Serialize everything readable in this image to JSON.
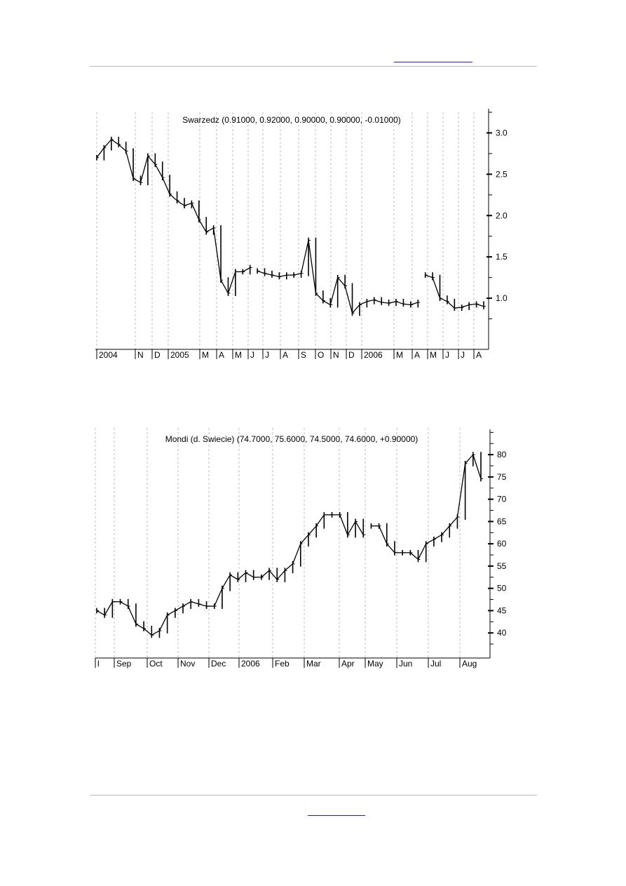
{
  "chart_data": [
    {
      "type": "ohlc",
      "title": "Swarzedz (0.91000, 0.92000, 0.90000, 0.90000, -0.01000)",
      "ylim": [
        0.5,
        3.25
      ],
      "y_ticks": [
        "1.0",
        "1.5",
        "2.0",
        "2.5",
        "3.0"
      ],
      "y_tick_values": [
        1.0,
        1.5,
        2.0,
        2.5,
        3.0
      ],
      "x_labels": [
        "2004",
        "N",
        "D",
        "2005",
        "M",
        "A",
        "M",
        "J",
        "J",
        "A",
        "S",
        "O",
        "N",
        "D",
        "2006",
        "M",
        "A",
        "M",
        "J",
        "J",
        "A"
      ],
      "grid": true,
      "series": [
        {
          "x": [
            0,
            1,
            2,
            3,
            4,
            5,
            6,
            7,
            8,
            9,
            10,
            11,
            12,
            13,
            14,
            15,
            16,
            17,
            18,
            19,
            20,
            21
          ],
          "values": [
            2.7,
            2.82,
            2.92,
            2.86,
            2.78,
            2.45,
            2.4,
            2.72,
            2.62,
            2.46,
            2.26,
            2.18,
            2.12,
            2.15,
            1.95,
            1.8,
            1.85,
            1.22,
            1.06,
            1.32,
            1.32,
            1.37
          ]
        },
        {
          "x": [
            22,
            23,
            24,
            25,
            26,
            27,
            28,
            29,
            30,
            31,
            32,
            33,
            34,
            35,
            36,
            37,
            38,
            39,
            40,
            41,
            42,
            43,
            44
          ],
          "values": [
            1.33,
            1.3,
            1.28,
            1.26,
            1.28,
            1.28,
            1.3,
            1.7,
            1.06,
            0.97,
            0.92,
            1.25,
            1.15,
            0.82,
            0.92,
            0.96,
            0.98,
            0.95,
            0.94,
            0.96,
            0.93,
            0.92,
            0.95
          ]
        },
        {
          "x": [
            45,
            46,
            47,
            48,
            49,
            50,
            51,
            52,
            53
          ],
          "values": [
            1.28,
            1.25,
            1.0,
            0.96,
            0.88,
            0.89,
            0.92,
            0.93,
            0.9
          ]
        }
      ]
    },
    {
      "type": "ohlc",
      "title": "Mondi (d. Swiecie) (74.7000, 75.6000, 74.5000, 74.6000, +0.90000)",
      "ylim": [
        35,
        86
      ],
      "y_ticks": [
        "40",
        "45",
        "50",
        "55",
        "60",
        "65",
        "70",
        "75",
        "80"
      ],
      "y_tick_values": [
        40,
        45,
        50,
        55,
        60,
        65,
        70,
        75,
        80
      ],
      "x_labels": [
        "l",
        "Sep",
        "Oct",
        "Nov",
        "Dec",
        "2006",
        "Feb",
        "Mar",
        "Apr",
        "May",
        "Jun",
        "Jul",
        "Aug"
      ],
      "grid": true,
      "series": [
        {
          "x": [
            0,
            1,
            2,
            3,
            4,
            5,
            6,
            7,
            8,
            9,
            10,
            11,
            12,
            13,
            14,
            15,
            16,
            17,
            18,
            19,
            20,
            21,
            22,
            23,
            24,
            25,
            26,
            27,
            28,
            29,
            30,
            31,
            32,
            33,
            34
          ],
          "values": [
            45.0,
            44.0,
            47.0,
            47.0,
            46.0,
            42.0,
            41.0,
            39.5,
            40.5,
            44.0,
            45.0,
            46.0,
            47.0,
            46.5,
            46.0,
            46.0,
            50.0,
            53.0,
            52.0,
            53.5,
            52.5,
            52.5,
            54.0,
            52.0,
            54.0,
            55.5,
            60.0,
            62.0,
            64.0,
            66.5,
            66.5,
            66.5,
            62.0,
            65.0,
            62.0
          ]
        },
        {
          "x": [
            35,
            36,
            37,
            38,
            39,
            40,
            41,
            42,
            43,
            44,
            45,
            46,
            47,
            48,
            49
          ],
          "values": [
            64.0,
            64.0,
            60.0,
            58.0,
            58.0,
            58.0,
            56.5,
            60.0,
            61.0,
            62.0,
            64.0,
            66.0,
            78.0,
            80.0,
            74.6
          ]
        }
      ]
    }
  ]
}
